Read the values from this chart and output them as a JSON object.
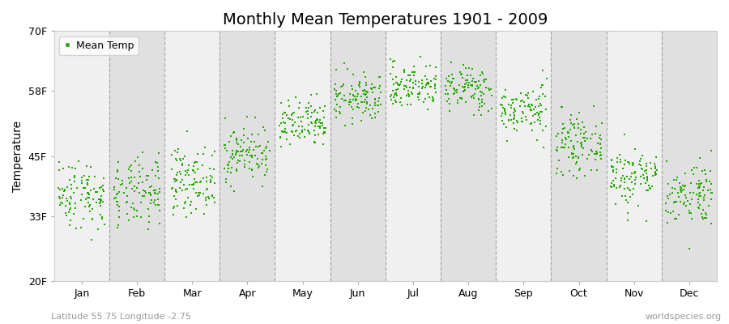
{
  "title": "Monthly Mean Temperatures 1901 - 2009",
  "ylabel": "Temperature",
  "xlabel_labels": [
    "Jan",
    "Feb",
    "Mar",
    "Apr",
    "May",
    "Jun",
    "Jul",
    "Aug",
    "Sep",
    "Oct",
    "Nov",
    "Dec"
  ],
  "ytick_labels": [
    "20F",
    "33F",
    "45F",
    "58F",
    "70F"
  ],
  "ytick_values": [
    20,
    33,
    45,
    58,
    70
  ],
  "ylim": [
    20,
    70
  ],
  "xlim": [
    0,
    12
  ],
  "background_color": "#ffffff",
  "plot_bg_color": "#ffffff",
  "band_color_light": "#f0f0f0",
  "band_color_dark": "#e0e0e0",
  "dot_color": "#22aa00",
  "dot_size": 3,
  "legend_label": "Mean Temp",
  "footer_left": "Latitude 55.75 Longitude -2.75",
  "footer_right": "worldspecies.org",
  "title_fontsize": 14,
  "label_fontsize": 10,
  "tick_fontsize": 9,
  "monthly_mean_F": [
    37.4,
    37.4,
    40.1,
    45.5,
    51.1,
    56.5,
    59.0,
    58.5,
    54.1,
    47.3,
    41.0,
    37.6
  ],
  "monthly_std_F": [
    3.5,
    3.5,
    3.2,
    2.8,
    2.5,
    2.4,
    2.3,
    2.3,
    2.5,
    2.8,
    3.0,
    3.2
  ],
  "n_years": 109
}
